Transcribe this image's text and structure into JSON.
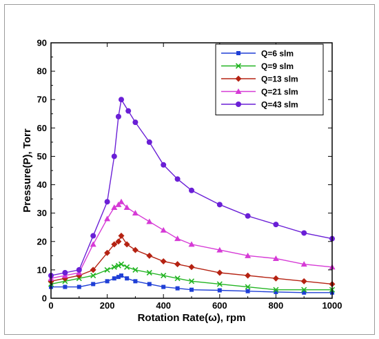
{
  "chart_data": {
    "type": "line",
    "title": "",
    "xlabel": "Rotation Rate(ω), rpm",
    "ylabel": "Pressure(P), Torr",
    "xlim": [
      0,
      1000
    ],
    "ylim": [
      0,
      90
    ],
    "xticks": [
      0,
      200,
      400,
      600,
      800,
      1000
    ],
    "yticks": [
      0,
      10,
      20,
      30,
      40,
      50,
      60,
      70,
      80,
      90
    ],
    "grid": false,
    "legend_position": "top-right",
    "series": [
      {
        "name": "Q=6 slm",
        "color": "#1f3fd6",
        "marker": "square",
        "x": [
          0,
          50,
          100,
          150,
          200,
          225,
          240,
          250,
          270,
          300,
          350,
          400,
          450,
          500,
          600,
          700,
          800,
          900,
          1000
        ],
        "y": [
          4,
          4,
          4,
          5,
          6,
          7,
          7.5,
          8,
          7,
          6,
          5,
          4,
          3.5,
          3,
          2.8,
          2.5,
          2.2,
          2,
          2
        ]
      },
      {
        "name": "Q=9 slm",
        "color": "#22b422",
        "marker": "x",
        "x": [
          0,
          50,
          100,
          150,
          200,
          225,
          240,
          250,
          270,
          300,
          350,
          400,
          450,
          500,
          600,
          700,
          800,
          900,
          1000
        ],
        "y": [
          5,
          6,
          7,
          8,
          10,
          11,
          11.5,
          12,
          11,
          10,
          9,
          8,
          7,
          6,
          5,
          4,
          3,
          3,
          3
        ]
      },
      {
        "name": "Q=13 slm",
        "color": "#b52212",
        "marker": "diamond",
        "x": [
          0,
          50,
          100,
          150,
          200,
          225,
          240,
          250,
          270,
          300,
          350,
          400,
          450,
          500,
          600,
          700,
          800,
          900,
          1000
        ],
        "y": [
          6,
          7,
          8,
          10,
          16,
          19,
          20,
          22,
          19,
          17,
          15,
          13,
          12,
          11,
          9,
          8,
          7,
          6,
          5
        ]
      },
      {
        "name": "Q=21 slm",
        "color": "#d63ad6",
        "marker": "triangle",
        "x": [
          0,
          50,
          100,
          150,
          200,
          225,
          240,
          250,
          270,
          300,
          350,
          400,
          450,
          500,
          600,
          700,
          800,
          900,
          1000
        ],
        "y": [
          7,
          8,
          9,
          19,
          28,
          32,
          33,
          34,
          32,
          30,
          27,
          24,
          21,
          19,
          17,
          15,
          14,
          12,
          11
        ]
      },
      {
        "name": "Q=43 slm",
        "color": "#6a1fd6",
        "marker": "circle",
        "x": [
          0,
          50,
          100,
          150,
          200,
          225,
          240,
          250,
          275,
          300,
          350,
          400,
          450,
          500,
          600,
          700,
          800,
          900,
          1000
        ],
        "y": [
          8,
          9,
          10,
          22,
          34,
          50,
          64,
          70,
          66,
          62,
          55,
          47,
          42,
          38,
          33,
          29,
          26,
          23,
          21
        ]
      }
    ]
  }
}
